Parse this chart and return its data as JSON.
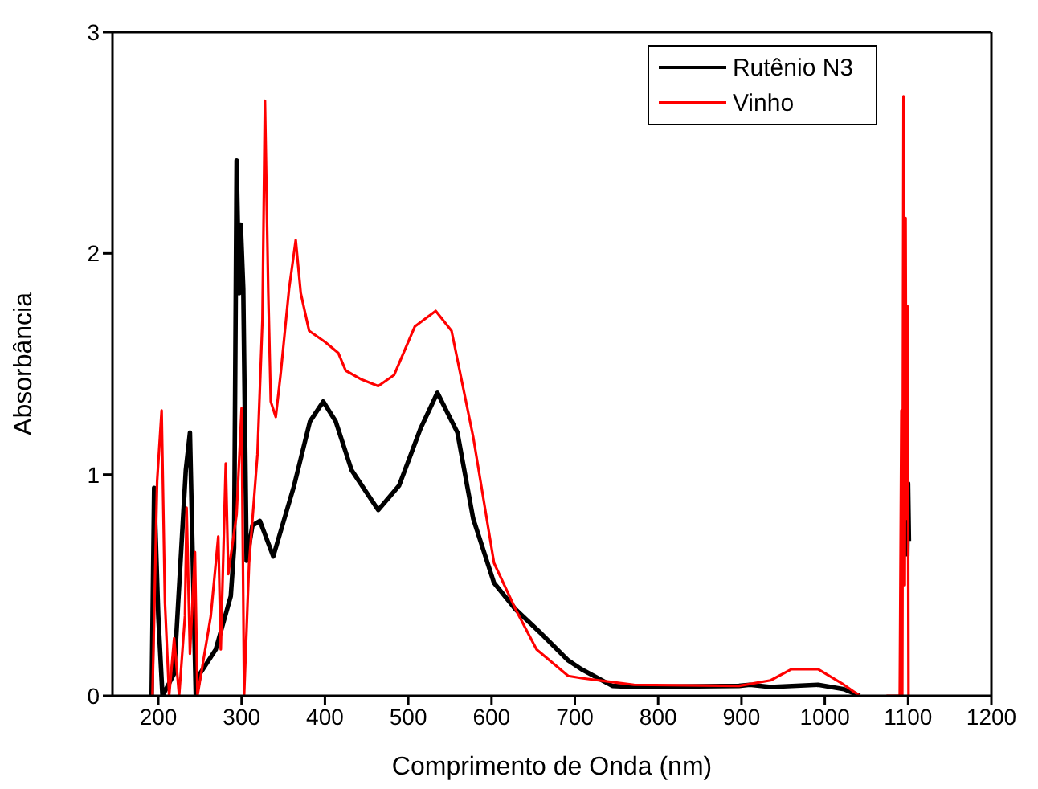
{
  "chart_data": {
    "type": "line",
    "xlabel": "Comprimento de Onda (nm)",
    "ylabel": "Absorbância",
    "xlim": [
      145,
      1200
    ],
    "ylim": [
      0,
      3
    ],
    "xticks": [
      200,
      300,
      400,
      500,
      600,
      700,
      800,
      900,
      1000,
      1100,
      1200
    ],
    "yticks": [
      0,
      1,
      2,
      3
    ],
    "legend": "top right",
    "marker": "none",
    "line_style": "solid",
    "series": [
      {
        "name": "Rutênio N3",
        "color": "#000000",
        "x": [
          192,
          195,
          200,
          205,
          219,
          233,
          238,
          245,
          250,
          269,
          287,
          291,
          294,
          297,
          299,
          302,
          306,
          313,
          322,
          338,
          363,
          382,
          398,
          413,
          432,
          464,
          489,
          515,
          535,
          559,
          578,
          603,
          629,
          660,
          692,
          708,
          745,
          771,
          897,
          910,
          935,
          992,
          1023,
          1042,
          1098,
          1099,
          1100,
          1101
        ],
        "values": [
          0,
          0.94,
          0.36,
          0,
          0.1,
          1.02,
          1.19,
          0,
          0.1,
          0.21,
          0.45,
          0.67,
          2.42,
          1.82,
          2.13,
          1.84,
          0.61,
          0.77,
          0.79,
          0.63,
          0.95,
          1.24,
          1.33,
          1.24,
          1.02,
          0.84,
          0.95,
          1.21,
          1.37,
          1.19,
          0.8,
          0.51,
          0.39,
          0.28,
          0.16,
          0.12,
          0.045,
          0.04,
          0.045,
          0.05,
          0.04,
          0.05,
          0.03,
          0,
          null,
          0.63,
          0.96,
          0.7
        ]
      },
      {
        "name": "Vinho",
        "color": "#ff0000",
        "x": [
          193,
          198.6,
          204,
          208,
          213,
          219,
          225,
          232,
          234,
          238,
          244,
          247,
          263,
          272,
          275,
          281,
          284,
          294,
          300,
          303,
          309,
          319,
          325,
          328,
          332,
          335,
          341,
          347,
          357,
          365,
          371,
          381,
          400,
          416,
          425,
          444,
          464,
          483,
          508,
          533,
          552,
          578,
          603,
          629,
          654,
          692,
          708,
          771,
          897,
          935,
          960,
          992,
          1023,
          1042,
          1055,
          1074,
          1090,
          1092,
          1093,
          1094.5,
          1096,
          1097,
          1098,
          1099.5,
          1100.5
        ],
        "values": [
          0,
          0.97,
          1.29,
          0.42,
          0,
          0.26,
          0,
          0.36,
          0.85,
          0.19,
          0.65,
          0,
          0.36,
          0.72,
          0.21,
          1.05,
          0.55,
          0.82,
          1.3,
          0,
          0.6,
          1.09,
          1.7,
          2.69,
          1.82,
          1.33,
          1.26,
          1.46,
          1.84,
          2.06,
          1.82,
          1.65,
          1.6,
          1.55,
          1.47,
          1.43,
          1.4,
          1.45,
          1.67,
          1.74,
          1.65,
          1.17,
          0.6,
          0.39,
          0.21,
          0.09,
          0.08,
          0.05,
          0.045,
          0.07,
          0.12,
          0.12,
          0.05,
          0,
          null,
          0,
          0,
          1.29,
          0,
          2.71,
          0.5,
          2.16,
          0.8,
          1.76,
          0
        ]
      }
    ]
  }
}
